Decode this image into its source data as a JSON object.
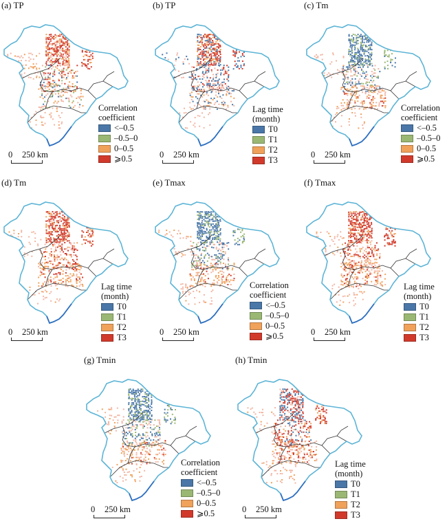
{
  "colors": {
    "outline": "#5cb4d6",
    "coast": "#2f6fc1",
    "border": "#333333",
    "blue": "#4a77a8",
    "green": "#9ab873",
    "orange": "#f0a15a",
    "red": "#d13a2b",
    "pink": "#f2b5a3"
  },
  "scalebar": {
    "zero": "0",
    "distance": "250 km"
  },
  "legends": {
    "corr": {
      "title_lines": [
        "Correlation",
        "coefficient"
      ],
      "items": [
        {
          "label": "<–0.5",
          "color": "#4a77a8"
        },
        {
          "label": "–0.5–0",
          "color": "#9ab873"
        },
        {
          "label": "0–0.5",
          "color": "#f0a15a"
        },
        {
          "label": "⩾0.5",
          "color": "#d13a2b"
        }
      ]
    },
    "lag": {
      "title_lines": [
        "Lag time",
        "(month)"
      ],
      "items": [
        {
          "label": "T0",
          "color": "#4a77a8"
        },
        {
          "label": "T1",
          "color": "#9ab873"
        },
        {
          "label": "T2",
          "color": "#f0a15a"
        },
        {
          "label": "T3",
          "color": "#d13a2b"
        }
      ]
    }
  },
  "panels": [
    {
      "id": "a",
      "title": "(a) TP",
      "legend": "corr",
      "pattern": "tp_corr"
    },
    {
      "id": "b",
      "title": "(b) TP",
      "legend": "lag",
      "pattern": "tp_lag"
    },
    {
      "id": "c",
      "title": "(c) Tm",
      "legend": "corr",
      "pattern": "neg_north"
    },
    {
      "id": "d",
      "title": "(d) Tm",
      "legend": "lag",
      "pattern": "red_north"
    },
    {
      "id": "e",
      "title": "(e) Tmax",
      "legend": "corr",
      "pattern": "neg_north"
    },
    {
      "id": "f",
      "title": "(f) Tmax",
      "legend": "lag",
      "pattern": "red_north"
    },
    {
      "id": "g",
      "title": "(g) Tmin",
      "legend": "corr",
      "pattern": "neg_north"
    },
    {
      "id": "h",
      "title": "(h) Tmin",
      "legend": "lag",
      "pattern": "mixed_lag"
    }
  ]
}
